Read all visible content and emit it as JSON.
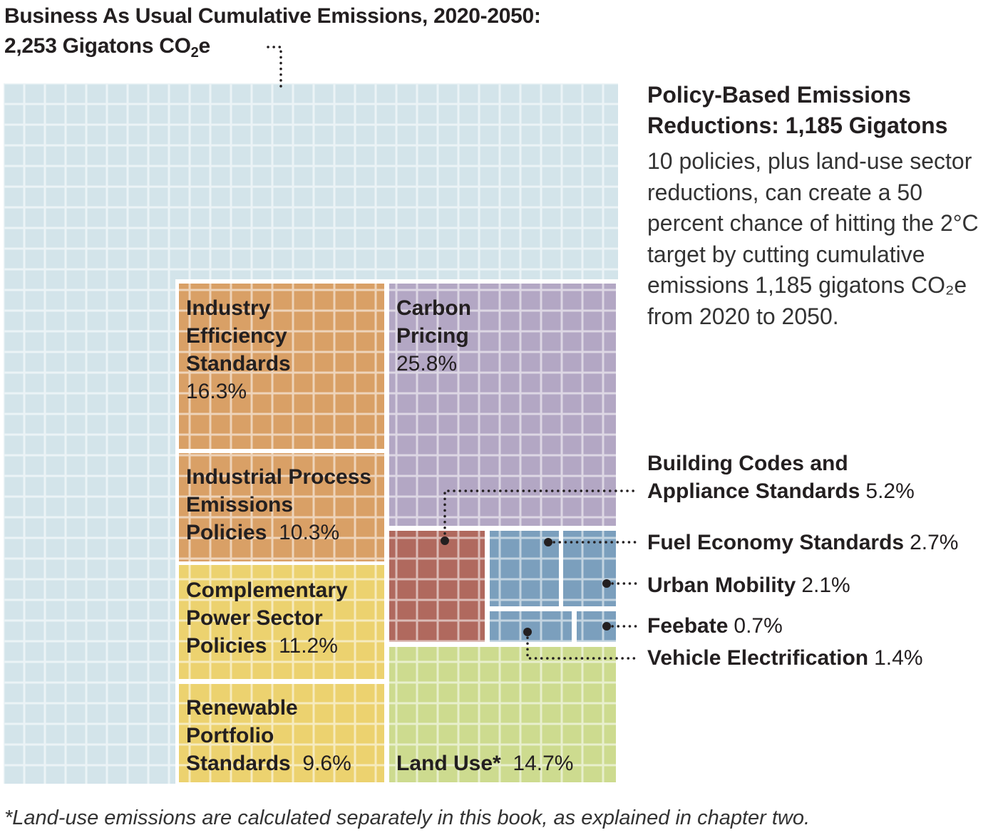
{
  "chart_data": {
    "type": "treemap",
    "title_line1": "Business As Usual Cumulative Emissions, 2020-2050:",
    "title_line2_prefix": "2,253 Gigatons CO",
    "title_line2_sub": "2",
    "title_line2_suffix": "e",
    "total_bau_gigatons": 2253,
    "reductions_gigatons": 1185,
    "side_heading": "Policy-Based Emissions Reductions: 1,185 Gigatons",
    "side_body": "10 policies, plus land-use sector reductions, can create a 50 percent chance of hitting the 2°C target by cutting cumulative emissions 1,185 gigatons CO₂e from 2020 to 2050.",
    "unit": "percent of reductions",
    "segments": [
      {
        "name": "Industry Efficiency Standards",
        "value": 16.3,
        "pct_label": "16.3%",
        "color": "#d9a066",
        "label_mode": "inside"
      },
      {
        "name": "Industrial Process Emissions Policies",
        "value": 10.3,
        "pct_label": "10.3%",
        "color": "#d9a066",
        "label_mode": "inside"
      },
      {
        "name": "Complementary Power Sector Policies",
        "value": 11.2,
        "pct_label": "11.2%",
        "color": "#ecd26f",
        "label_mode": "inside"
      },
      {
        "name": "Renewable Portfolio Standards",
        "value": 9.6,
        "pct_label": "9.6%",
        "color": "#ecd26f",
        "label_mode": "inside"
      },
      {
        "name": "Carbon Pricing",
        "value": 25.8,
        "pct_label": "25.8%",
        "color": "#b3a7c4",
        "label_mode": "inside"
      },
      {
        "name": "Land Use*",
        "value": 14.7,
        "pct_label": "14.7%",
        "color": "#cddb8f",
        "label_mode": "inside"
      },
      {
        "name": "Building Codes and Appliance Standards",
        "value": 5.2,
        "pct_label": "5.2%",
        "color": "#b0695e",
        "label_mode": "callout"
      },
      {
        "name": "Fuel Economy Standards",
        "value": 2.7,
        "pct_label": "2.7%",
        "color": "#7b9fbd",
        "label_mode": "callout"
      },
      {
        "name": "Urban Mobility",
        "value": 2.1,
        "pct_label": "2.1%",
        "color": "#7b9fbd",
        "label_mode": "callout"
      },
      {
        "name": "Feebate",
        "value": 0.7,
        "pct_label": "0.7%",
        "color": "#7b9fbd",
        "label_mode": "callout"
      },
      {
        "name": "Vehicle Electrification",
        "value": 1.4,
        "pct_label": "1.4%",
        "color": "#7b9fbd",
        "label_mode": "callout"
      }
    ],
    "background_color": "#d3e4ea",
    "footnote": "*Land-use emissions are calculated separately in this book, as explained in chapter two."
  },
  "labels": {
    "industry_eff": {
      "lines": [
        "Industry",
        "Efficiency",
        "Standards"
      ],
      "pct": "16.3%"
    },
    "industrial_proc": {
      "lines": [
        "Industrial Process",
        "Emissions"
      ],
      "last": "Policies",
      "pct": "10.3%"
    },
    "complementary": {
      "lines": [
        "Complementary",
        "Power Sector"
      ],
      "last": "Policies",
      "pct": "11.2%"
    },
    "renewable": {
      "lines": [
        "Renewable",
        "Portfolio"
      ],
      "last": "Standards",
      "pct": "9.6%"
    },
    "carbon": {
      "lines": [
        "Carbon",
        "Pricing"
      ],
      "pct": "25.8%"
    },
    "land": {
      "last": "Land Use*",
      "pct": "14.7%"
    },
    "building": {
      "line1": "Building Codes and",
      "line2": "Appliance Standards",
      "pct": "5.2%"
    },
    "fuel": {
      "name": "Fuel Economy Standards",
      "pct": "2.7%"
    },
    "urban": {
      "name": "Urban Mobility",
      "pct": "2.1%"
    },
    "feebate": {
      "name": "Feebate",
      "pct": "0.7%"
    },
    "vehicle": {
      "name": "Vehicle Electrification",
      "pct": "1.4%"
    }
  }
}
